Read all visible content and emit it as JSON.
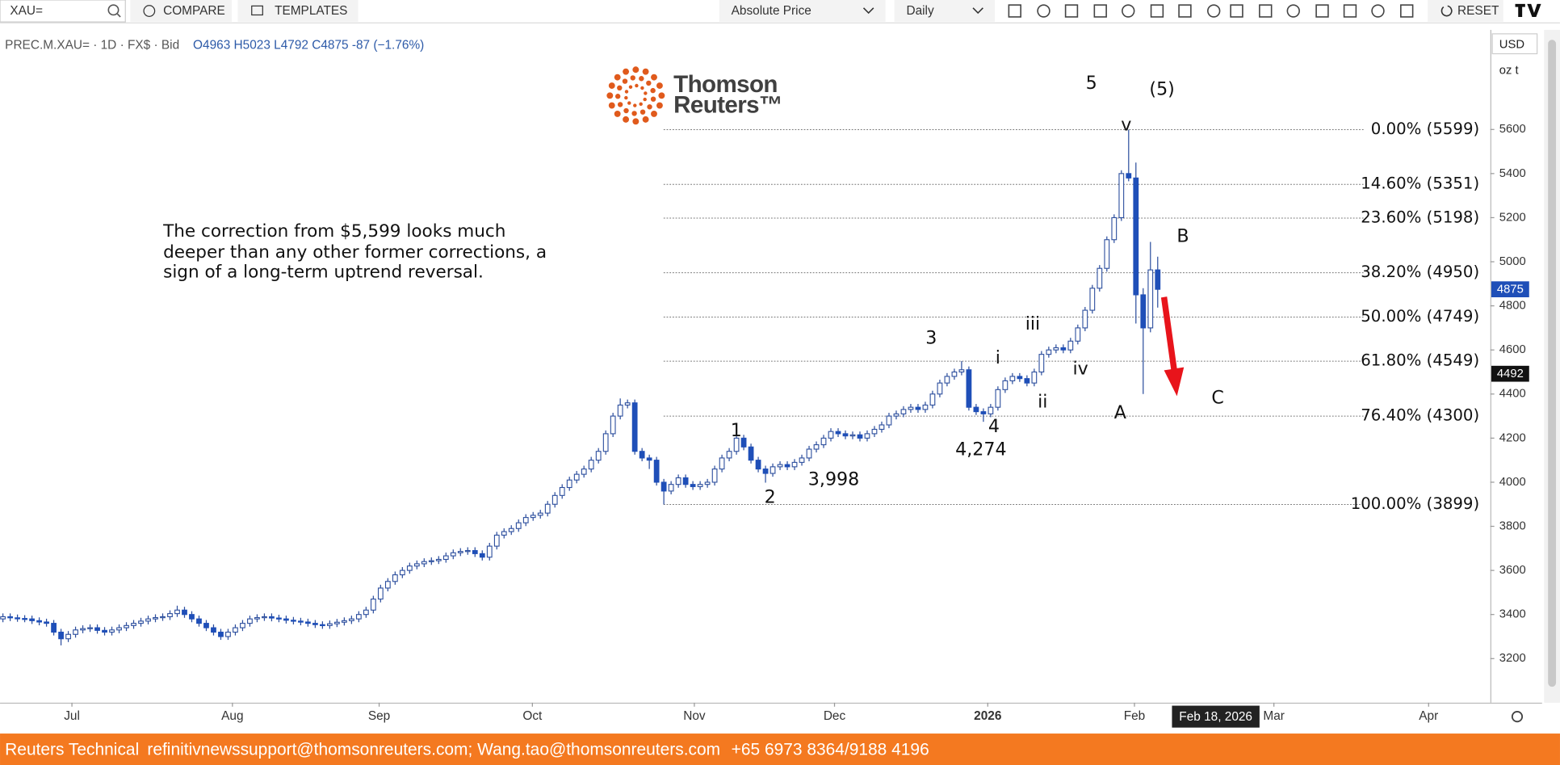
{
  "toolbar": {
    "symbol": "XAU=",
    "compare": "COMPARE",
    "templates": "TEMPLATES",
    "price_mode": "Absolute Price",
    "interval": "Daily",
    "reset": "RESET"
  },
  "footer": {
    "source": "Reuters Technical",
    "emails": "refinitivnewssupport@thomsonreuters.com; Wang.tao@thomsonreuters.com",
    "phone": "+65 6973 8364/9188 4196"
  },
  "chart_data": {
    "type": "candlestick",
    "symbol_info": "PREC.M.XAU= · 1D · FX$ · Bid",
    "ohlc_info": "O4963  H5023  L4792  C4875  -87 (−1.76%)",
    "logo": [
      "Thomson",
      "Reuters™"
    ],
    "currency": "USD",
    "unit": "oz t",
    "note": [
      "The correction from $5,599 looks much",
      "deeper than any other former corrections, a",
      "sign of a long-term uptrend reversal."
    ],
    "annotations": [
      "5",
      "(5)",
      "v",
      "B",
      "iii",
      "i",
      "3",
      "iv",
      "ii",
      "A",
      "C",
      "1",
      "4",
      "4,274",
      "2",
      "3,998"
    ],
    "crosshair_label": "Feb 18, 2026",
    "up_color": "#ffffff",
    "down_color": "#1f4fb8",
    "outline_color": "#2d4f9e",
    "ylim": [
      3000,
      6050
    ],
    "yticks": [
      3200,
      3400,
      3600,
      3800,
      4000,
      4200,
      4400,
      4600,
      4800,
      5000,
      5200,
      5400,
      5600
    ],
    "xlim": [
      -0.4,
      204.8
    ],
    "xticks": [
      {
        "value": 9.5,
        "label": "Jul"
      },
      {
        "value": 31.6,
        "label": "Aug"
      },
      {
        "value": 51.8,
        "label": "Sep"
      },
      {
        "value": 72.9,
        "label": "Oct"
      },
      {
        "value": 95.2,
        "label": "Nov"
      },
      {
        "value": 114.5,
        "label": "Dec"
      },
      {
        "value": 135.6,
        "label": "2026"
      },
      {
        "value": 155.8,
        "label": "Feb"
      },
      {
        "value": 175,
        "label": "Mar"
      },
      {
        "value": 196.3,
        "label": "Apr"
      }
    ],
    "fib_levels": [
      {
        "value": 5599,
        "label": "0.00% (5599)"
      },
      {
        "value": 5351,
        "label": "14.60% (5351)"
      },
      {
        "value": 5198,
        "label": "23.60% (5198)"
      },
      {
        "value": 4950,
        "label": "38.20% (4950)"
      },
      {
        "value": 4749,
        "label": "50.00% (4749)"
      },
      {
        "value": 4549,
        "label": "61.80% (4549)"
      },
      {
        "value": 4300,
        "label": "76.40% (4300)"
      },
      {
        "value": 3899,
        "label": "100.00% (3899)"
      }
    ],
    "price_badges": [
      4875,
      4492
    ],
    "open": [
      3380,
      3390,
      3385,
      3382,
      3380,
      3372,
      3366,
      3360,
      3320,
      3290,
      3310,
      3330,
      3336,
      3340,
      3328,
      3320,
      3330,
      3340,
      3350,
      3360,
      3370,
      3380,
      3386,
      3390,
      3404,
      3420,
      3400,
      3380,
      3360,
      3340,
      3320,
      3300,
      3320,
      3340,
      3360,
      3380,
      3386,
      3390,
      3384,
      3380,
      3374,
      3370,
      3366,
      3360,
      3354,
      3350,
      3358,
      3365,
      3372,
      3380,
      3400,
      3420,
      3470,
      3520,
      3550,
      3580,
      3600,
      3620,
      3630,
      3640,
      3644,
      3650,
      3666,
      3680,
      3686,
      3690,
      3676,
      3660,
      3710,
      3760,
      3776,
      3790,
      3816,
      3840,
      3850,
      3860,
      3900,
      3940,
      3976,
      4010,
      4036,
      4060,
      4100,
      4140,
      4220,
      4300,
      4350,
      4360,
      4140,
      4110,
      4100,
      4000,
      3960,
      3990,
      4020,
      3990,
      3980,
      3990,
      4000,
      4060,
      4110,
      4140,
      4200,
      4160,
      4100,
      4060,
      4040,
      4070,
      4080,
      4070,
      4090,
      4110,
      4150,
      4170,
      4200,
      4230,
      4220,
      4210,
      4215,
      4200,
      4220,
      4240,
      4260,
      4300,
      4310,
      4330,
      4340,
      4330,
      4350,
      4400,
      4450,
      4480,
      4500,
      4510,
      4340,
      4320,
      4310,
      4340,
      4420,
      4460,
      4480,
      4470,
      4450,
      4500,
      4580,
      4600,
      4610,
      4600,
      4640,
      4700,
      4780,
      4880,
      4970,
      5100,
      5200,
      5400,
      5380,
      4850,
      4700,
      4963
    ],
    "high": [
      3405,
      3405,
      3400,
      3397,
      3395,
      3387,
      3381,
      3375,
      3335,
      3325,
      3345,
      3351,
      3355,
      3355,
      3343,
      3345,
      3355,
      3365,
      3375,
      3385,
      3395,
      3401,
      3405,
      3419,
      3440,
      3435,
      3415,
      3395,
      3375,
      3355,
      3335,
      3335,
      3355,
      3375,
      3395,
      3401,
      3405,
      3405,
      3399,
      3395,
      3389,
      3385,
      3381,
      3375,
      3369,
      3373,
      3380,
      3387,
      3395,
      3415,
      3435,
      3485,
      3535,
      3565,
      3595,
      3615,
      3635,
      3645,
      3655,
      3659,
      3665,
      3681,
      3695,
      3701,
      3705,
      3705,
      3691,
      3725,
      3775,
      3791,
      3805,
      3831,
      3855,
      3865,
      3875,
      3915,
      3955,
      3991,
      4025,
      4051,
      4075,
      4115,
      4155,
      4235,
      4315,
      4380,
      4375,
      4375,
      4155,
      4125,
      4115,
      4015,
      4005,
      4035,
      4035,
      4005,
      4005,
      4015,
      4075,
      4125,
      4155,
      4240,
      4215,
      4175,
      4115,
      4075,
      4085,
      4095,
      4095,
      4105,
      4125,
      4165,
      4185,
      4215,
      4245,
      4245,
      4235,
      4230,
      4230,
      4235,
      4255,
      4275,
      4315,
      4325,
      4345,
      4355,
      4355,
      4365,
      4415,
      4465,
      4495,
      4515,
      4549,
      4525,
      4355,
      4335,
      4355,
      4435,
      4475,
      4495,
      4495,
      4485,
      4515,
      4595,
      4615,
      4625,
      4625,
      4655,
      4715,
      4795,
      4895,
      4985,
      5115,
      5215,
      5415,
      5599,
      5450,
      4880,
      5090,
      5023
    ],
    "low": [
      3365,
      3370,
      3367,
      3365,
      3357,
      3351,
      3345,
      3305,
      3260,
      3275,
      3295,
      3315,
      3321,
      3313,
      3305,
      3305,
      3315,
      3325,
      3335,
      3345,
      3355,
      3365,
      3371,
      3375,
      3389,
      3385,
      3365,
      3345,
      3325,
      3305,
      3285,
      3285,
      3305,
      3325,
      3345,
      3365,
      3371,
      3369,
      3365,
      3359,
      3355,
      3351,
      3345,
      3339,
      3335,
      3335,
      3343,
      3350,
      3357,
      3365,
      3385,
      3405,
      3455,
      3505,
      3535,
      3565,
      3585,
      3605,
      3615,
      3625,
      3629,
      3635,
      3651,
      3665,
      3671,
      3661,
      3645,
      3645,
      3695,
      3745,
      3761,
      3775,
      3801,
      3825,
      3835,
      3845,
      3885,
      3925,
      3961,
      3995,
      4021,
      4045,
      4085,
      4125,
      4205,
      4285,
      4335,
      4125,
      4095,
      4060,
      3985,
      3899,
      3945,
      3975,
      3975,
      3965,
      3965,
      3975,
      3985,
      4045,
      4095,
      4125,
      4145,
      4085,
      4045,
      3998,
      4025,
      4055,
      4055,
      4055,
      4075,
      4095,
      4135,
      4155,
      4185,
      4205,
      4195,
      4195,
      4185,
      4185,
      4205,
      4225,
      4245,
      4285,
      4295,
      4315,
      4315,
      4315,
      4335,
      4385,
      4435,
      4465,
      4485,
      4325,
      4305,
      4274,
      4295,
      4325,
      4405,
      4445,
      4455,
      4435,
      4435,
      4485,
      4565,
      4585,
      4585,
      4585,
      4625,
      4685,
      4765,
      4865,
      4955,
      5085,
      5185,
      5365,
      4720,
      4400,
      4680,
      4792
    ],
    "close": [
      3390,
      3385,
      3382,
      3380,
      3372,
      3366,
      3360,
      3320,
      3290,
      3310,
      3330,
      3336,
      3340,
      3328,
      3320,
      3330,
      3340,
      3350,
      3360,
      3370,
      3380,
      3386,
      3390,
      3404,
      3420,
      3400,
      3380,
      3360,
      3340,
      3320,
      3300,
      3320,
      3340,
      3360,
      3380,
      3386,
      3390,
      3384,
      3380,
      3374,
      3370,
      3366,
      3360,
      3354,
      3350,
      3358,
      3365,
      3372,
      3380,
      3400,
      3420,
      3470,
      3520,
      3550,
      3580,
      3600,
      3620,
      3630,
      3640,
      3644,
      3650,
      3666,
      3680,
      3686,
      3690,
      3676,
      3660,
      3710,
      3760,
      3776,
      3790,
      3816,
      3840,
      3850,
      3860,
      3900,
      3940,
      3976,
      4010,
      4036,
      4060,
      4100,
      4140,
      4220,
      4300,
      4350,
      4360,
      4140,
      4110,
      4100,
      4000,
      3960,
      3990,
      4020,
      3990,
      3980,
      3990,
      4000,
      4060,
      4110,
      4140,
      4200,
      4160,
      4100,
      4060,
      4040,
      4070,
      4080,
      4070,
      4090,
      4110,
      4150,
      4170,
      4200,
      4230,
      4220,
      4210,
      4215,
      4200,
      4220,
      4240,
      4260,
      4300,
      4310,
      4330,
      4340,
      4330,
      4350,
      4400,
      4450,
      4480,
      4500,
      4510,
      4340,
      4320,
      4310,
      4340,
      4420,
      4460,
      4480,
      4470,
      4450,
      4500,
      4580,
      4600,
      4610,
      4600,
      4640,
      4700,
      4780,
      4880,
      4970,
      5100,
      5200,
      5400,
      5380,
      4850,
      4700,
      4963,
      4875
    ]
  }
}
